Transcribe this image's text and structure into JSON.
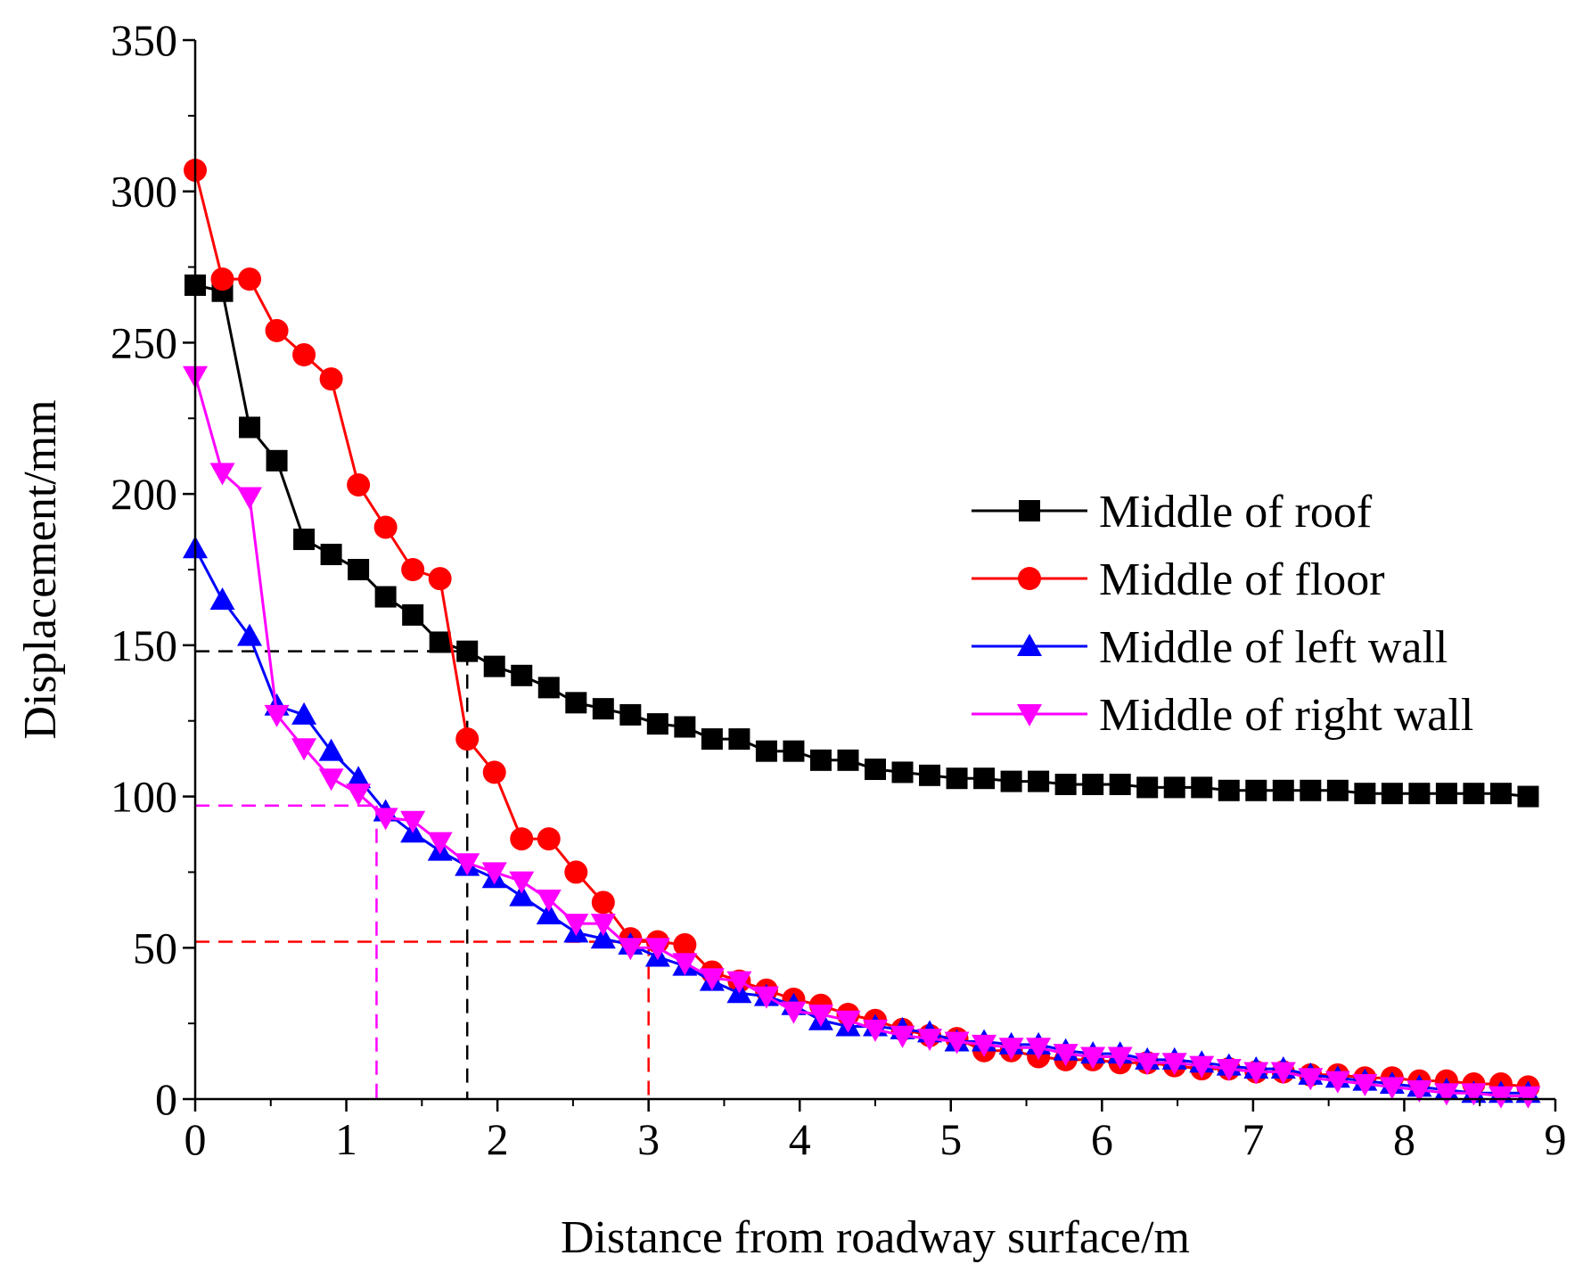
{
  "chart_data": {
    "type": "line",
    "title": "",
    "xlabel": "Distance from roadway surface/m",
    "ylabel": "Displacement/mm",
    "xlim": [
      0,
      9
    ],
    "ylim": [
      0,
      350
    ],
    "xticks": [
      "0",
      "1",
      "2",
      "3",
      "4",
      "5",
      "6",
      "7",
      "8",
      "9"
    ],
    "yticks": [
      "0",
      "50",
      "100",
      "150",
      "200",
      "250",
      "300",
      "350"
    ],
    "grid": false,
    "legend_position": "center-right",
    "series": [
      {
        "name": "Middle of roof",
        "color": "#000000",
        "marker": "square",
        "x": [
          0,
          0.18,
          0.36,
          0.54,
          0.72,
          0.9,
          1.08,
          1.26,
          1.44,
          1.62,
          1.8,
          1.98,
          2.16,
          2.34,
          2.52,
          2.7,
          2.88,
          3.06,
          3.24,
          3.42,
          3.6,
          3.78,
          3.96,
          4.14,
          4.32,
          4.5,
          4.68,
          4.86,
          5.04,
          5.22,
          5.4,
          5.58,
          5.76,
          5.94,
          6.12,
          6.3,
          6.48,
          6.66,
          6.84,
          7.02,
          7.2,
          7.38,
          7.56,
          7.74,
          7.92,
          8.1,
          8.28,
          8.46,
          8.64,
          8.82
        ],
        "y": [
          269,
          267,
          222,
          211,
          185,
          180,
          175,
          166,
          160,
          151,
          148,
          143,
          140,
          136,
          131,
          129,
          127,
          124,
          123,
          119,
          119,
          115,
          115,
          112,
          112,
          109,
          108,
          107,
          106,
          106,
          105,
          105,
          104,
          104,
          104,
          103,
          103,
          103,
          102,
          102,
          102,
          102,
          102,
          101,
          101,
          101,
          101,
          101,
          101,
          100
        ]
      },
      {
        "name": "Middle of floor",
        "color": "#ff0000",
        "marker": "circle",
        "x": [
          0,
          0.18,
          0.36,
          0.54,
          0.72,
          0.9,
          1.08,
          1.26,
          1.44,
          1.62,
          1.8,
          1.98,
          2.16,
          2.34,
          2.52,
          2.7,
          2.88,
          3.06,
          3.24,
          3.42,
          3.6,
          3.78,
          3.96,
          4.14,
          4.32,
          4.5,
          4.68,
          4.86,
          5.04,
          5.22,
          5.4,
          5.58,
          5.76,
          5.94,
          6.12,
          6.3,
          6.48,
          6.66,
          6.84,
          7.02,
          7.2,
          7.38,
          7.56,
          7.74,
          7.92,
          8.1,
          8.28,
          8.46,
          8.64,
          8.82
        ],
        "y": [
          307,
          271,
          271,
          254,
          246,
          238,
          203,
          189,
          175,
          172,
          119,
          108,
          86,
          86,
          75,
          65,
          53,
          52,
          51,
          42,
          39,
          36,
          33,
          31,
          28,
          26,
          23,
          21,
          20,
          16,
          16,
          14,
          13,
          13,
          12,
          12,
          11,
          10,
          10,
          9,
          9,
          8,
          8,
          7,
          7,
          6,
          6,
          5,
          5,
          4
        ]
      },
      {
        "name": "Middle of left wall",
        "color": "#0000ff",
        "marker": "triangle-up",
        "x": [
          0,
          0.18,
          0.36,
          0.54,
          0.72,
          0.9,
          1.08,
          1.26,
          1.44,
          1.62,
          1.8,
          1.98,
          2.16,
          2.34,
          2.52,
          2.7,
          2.88,
          3.06,
          3.24,
          3.42,
          3.6,
          3.78,
          3.96,
          4.14,
          4.32,
          4.5,
          4.68,
          4.86,
          5.04,
          5.22,
          5.4,
          5.58,
          5.76,
          5.94,
          6.12,
          6.3,
          6.48,
          6.66,
          6.84,
          7.02,
          7.2,
          7.38,
          7.56,
          7.74,
          7.92,
          8.1,
          8.28,
          8.46,
          8.64,
          8.82
        ],
        "y": [
          182,
          165,
          153,
          130,
          127,
          115,
          106,
          95,
          88,
          82,
          77,
          73,
          67,
          61,
          55,
          53,
          51,
          47,
          44,
          39,
          35,
          34,
          31,
          26,
          24,
          24,
          23,
          22,
          19,
          19,
          18,
          18,
          16,
          15,
          15,
          13,
          13,
          12,
          11,
          10,
          10,
          8,
          7,
          6,
          5,
          4,
          3,
          2,
          2,
          2
        ]
      },
      {
        "name": "Middle of right wall",
        "color": "#ff00ff",
        "marker": "triangle-down",
        "x": [
          0,
          0.18,
          0.36,
          0.54,
          0.72,
          0.9,
          1.08,
          1.26,
          1.44,
          1.62,
          1.8,
          1.98,
          2.16,
          2.34,
          2.52,
          2.7,
          2.88,
          3.06,
          3.24,
          3.42,
          3.6,
          3.78,
          3.96,
          4.14,
          4.32,
          4.5,
          4.68,
          4.86,
          5.04,
          5.22,
          5.4,
          5.58,
          5.76,
          5.94,
          6.12,
          6.3,
          6.48,
          6.66,
          6.84,
          7.02,
          7.2,
          7.38,
          7.56,
          7.74,
          7.92,
          8.1,
          8.28,
          8.46,
          8.64,
          8.82
        ],
        "y": [
          239,
          207,
          199,
          127,
          116,
          106,
          101,
          93,
          92,
          85,
          78,
          75,
          72,
          66,
          58,
          58,
          50,
          50,
          45,
          40,
          39,
          34,
          29,
          28,
          26,
          23,
          21,
          20,
          19,
          18,
          17,
          17,
          15,
          14,
          14,
          12,
          12,
          11,
          10,
          9,
          9,
          7,
          6,
          5,
          4,
          3,
          2,
          2,
          1,
          1
        ]
      }
    ],
    "reference_lines": [
      {
        "color": "#000000",
        "x": 1.8,
        "y": 148
      },
      {
        "color": "#ff0000",
        "x": 3.0,
        "y": 52
      },
      {
        "color": "#ff00ff",
        "x": 1.2,
        "y": 97
      }
    ]
  }
}
